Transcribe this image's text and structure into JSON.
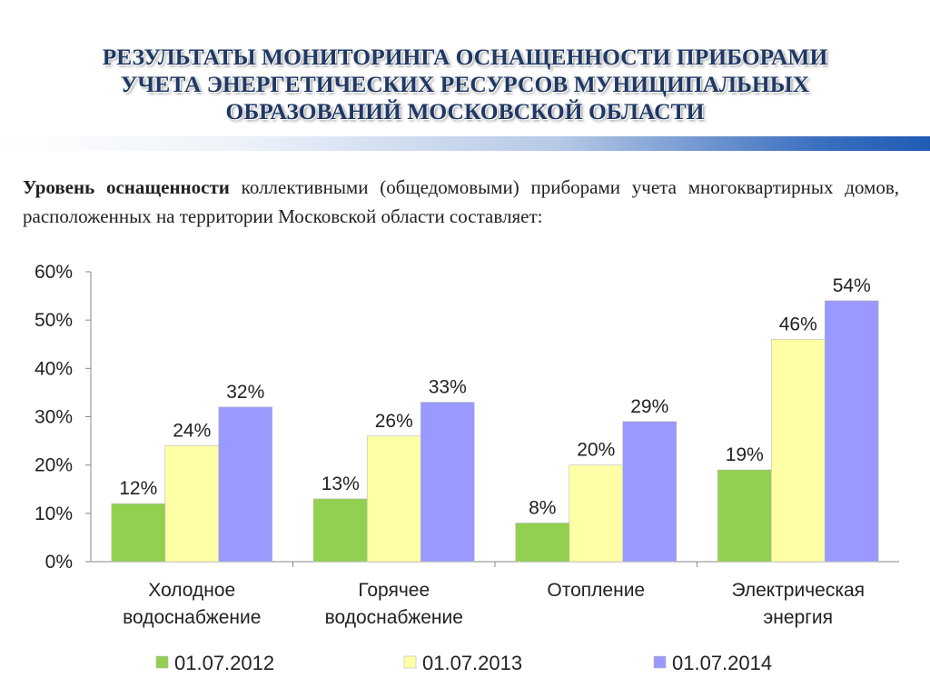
{
  "header": {
    "title_lines": [
      "РЕЗУЛЬТАТЫ МОНИТОРИНГА ОСНАЩЕННОСТИ ПРИБОРАМИ",
      "УЧЕТА ЭНЕРГЕТИЧЕСКИХ РЕСУРСОВ МУНИЦИПАЛЬНЫХ",
      "ОБРАЗОВАНИЙ МОСКОВСКОЙ ОБЛАСТИ"
    ]
  },
  "intro": {
    "bold": "Уровень оснащенности",
    "rest": " коллективными (общедомовыми) приборами учета многоквартирных домов, расположенных на территории Московской области составляет:"
  },
  "colors": {
    "title": "#1f3864",
    "s2012": "#92d050",
    "s2013": "#ffffa6",
    "s2014": "#9999ff"
  },
  "chart_data": {
    "type": "bar",
    "categories": [
      [
        "Холодное",
        "водоснабжение"
      ],
      [
        "Горячее",
        "водоснабжение"
      ],
      [
        "Отопление"
      ],
      [
        "Электрическая",
        "энергия"
      ]
    ],
    "series": [
      {
        "name": "01.07.2012",
        "values": [
          12,
          13,
          8,
          19
        ],
        "labels": [
          "12%",
          "13%",
          "8%",
          "19%"
        ],
        "color": "#92d050"
      },
      {
        "name": "01.07.2013",
        "values": [
          24,
          26,
          20,
          46
        ],
        "labels": [
          "24%",
          "26%",
          "20%",
          "46%"
        ],
        "color": "#ffffa6"
      },
      {
        "name": "01.07.2014",
        "values": [
          32,
          33,
          29,
          54
        ],
        "labels": [
          "32%",
          "33%",
          "29%",
          "54%"
        ],
        "color": "#9999ff"
      }
    ],
    "ylim": [
      0,
      60
    ],
    "yticks": [
      "0%",
      "10%",
      "20%",
      "30%",
      "40%",
      "50%",
      "60%"
    ],
    "legend": "bottom",
    "grid": false
  }
}
